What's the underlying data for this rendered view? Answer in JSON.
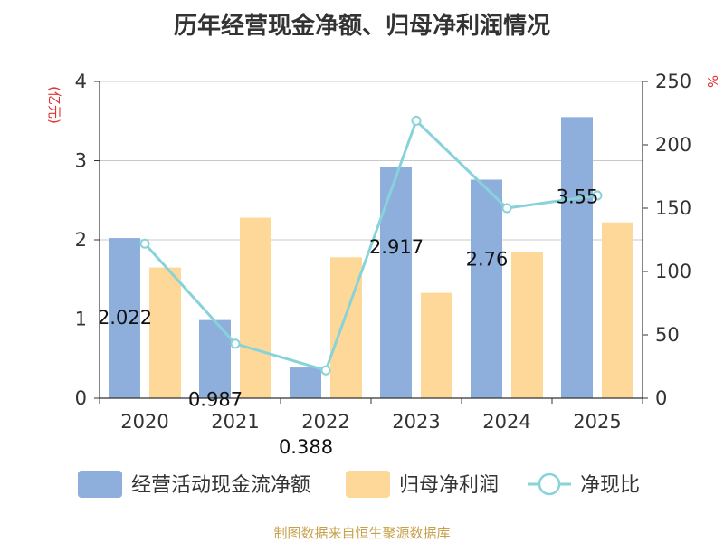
{
  "chart_data": {
    "type": "bar",
    "title": "历年经营现金净额、归母净利润情况",
    "categories": [
      "2020",
      "2021",
      "2022",
      "2023",
      "2024",
      "2025"
    ],
    "series": [
      {
        "name": "经营活动现金流净额",
        "type": "bar",
        "axis": "left",
        "color": "#8eaedb",
        "values": [
          2.022,
          0.987,
          0.388,
          2.917,
          2.76,
          3.55
        ],
        "labels": [
          "2.022",
          "0.987",
          "0.388",
          "2.917",
          "2.76",
          "3.55"
        ]
      },
      {
        "name": "归母净利润",
        "type": "bar",
        "axis": "left",
        "color": "#fed898",
        "values": [
          1.65,
          2.28,
          1.78,
          1.33,
          1.84,
          2.22
        ]
      },
      {
        "name": "净现比",
        "type": "line",
        "axis": "right",
        "color": "#88d3d9",
        "values": [
          122,
          43,
          22,
          219,
          150,
          160
        ]
      }
    ],
    "y_left": {
      "label": "(亿元)",
      "ylim": [
        0,
        4
      ],
      "ticks": [
        "0",
        "1",
        "2",
        "3",
        "4"
      ]
    },
    "y_right": {
      "label": "%",
      "ylim": [
        0,
        250
      ],
      "ticks": [
        "0",
        "50",
        "100",
        "150",
        "200",
        "250"
      ]
    },
    "grid": true,
    "legend": "bottom"
  },
  "footer": "制图数据来自恒生聚源数据库"
}
